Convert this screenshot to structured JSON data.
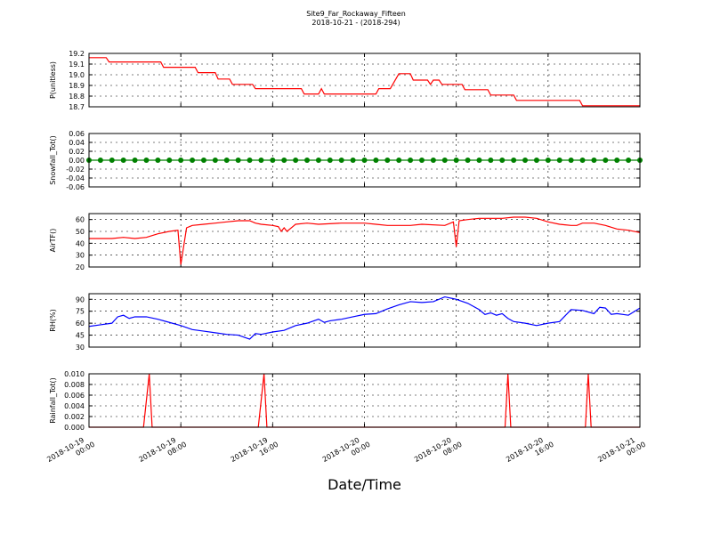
{
  "chart_data": [
    {
      "type": "line",
      "title": "Site9_Far_Rockaway_Fifteen",
      "subtitle": "2018-10-21 - (2018-294)",
      "ylabel": "P(unitless)",
      "color": "#ff0000",
      "grid": true,
      "xlim": [
        "2018-10-19 00:00",
        "2018-10-21 00:00"
      ],
      "xticks": [
        "2018-10-19 00:00",
        "2018-10-19 08:00",
        "2018-10-19 16:00",
        "2018-10-20 00:00",
        "2018-10-20 08:00",
        "2018-10-20 16:00",
        "2018-10-21 00:00"
      ],
      "ylim": [
        18.7,
        19.2
      ],
      "yticks": [
        18.7,
        18.8,
        18.9,
        {
          "value": 19,
          "label": "19.0"
        },
        19.1,
        19.2
      ],
      "x": [
        "2018-10-19 00:00",
        "2018-10-19 01:30",
        "2018-10-19 01:45",
        "2018-10-19 06:15",
        "2018-10-19 06:30",
        "2018-10-19 09:15",
        "2018-10-19 09:30",
        "2018-10-19 11:00",
        "2018-10-19 11:15",
        "2018-10-19 12:15",
        "2018-10-19 12:30",
        "2018-10-19 14:15",
        "2018-10-19 14:30",
        "2018-10-19 18:30",
        "2018-10-19 18:45",
        "2018-10-19 20:00",
        "2018-10-19 20:15",
        "2018-10-19 20:30",
        "2018-10-20 01:00",
        "2018-10-20 01:15",
        "2018-10-20 02:15",
        "2018-10-20 03:00",
        "2018-10-20 04:00",
        "2018-10-20 04:15",
        "2018-10-20 05:30",
        "2018-10-20 05:45",
        "2018-10-20 06:00",
        "2018-10-20 06:30",
        "2018-10-20 06:45",
        "2018-10-20 08:30",
        "2018-10-20 08:45",
        "2018-10-20 10:45",
        "2018-10-20 11:00",
        "2018-10-20 13:00",
        "2018-10-20 13:15",
        "2018-10-20 18:45",
        "2018-10-20 19:00",
        "2018-10-21 00:00"
      ],
      "values": [
        19.16,
        19.16,
        19.12,
        19.12,
        19.07,
        19.07,
        19.02,
        19.02,
        18.96,
        18.96,
        18.91,
        18.91,
        18.87,
        18.87,
        18.82,
        18.82,
        18.87,
        18.82,
        18.82,
        18.87,
        18.87,
        19.01,
        19.01,
        18.95,
        18.95,
        18.91,
        18.95,
        18.95,
        18.91,
        18.91,
        18.86,
        18.86,
        18.81,
        18.81,
        18.76,
        18.76,
        18.71,
        18.71
      ]
    },
    {
      "type": "line",
      "marker": true,
      "ylabel": "Snowfall_Tot()",
      "color": "#008000",
      "grid": true,
      "xlim": [
        "2018-10-19 00:00",
        "2018-10-21 00:00"
      ],
      "xticks": [
        "2018-10-19 00:00",
        "2018-10-19 08:00",
        "2018-10-19 16:00",
        "2018-10-20 00:00",
        "2018-10-20 08:00",
        "2018-10-20 16:00",
        "2018-10-21 00:00"
      ],
      "ylim": [
        -0.06,
        0.06
      ],
      "yticks": [
        -0.06,
        -0.04,
        -0.02,
        {
          "value": 0,
          "label": "0.00"
        },
        0.02,
        0.04,
        0.06
      ],
      "x": [
        "2018-10-19 00:00",
        "2018-10-19 01:00",
        "2018-10-19 02:00",
        "2018-10-19 03:00",
        "2018-10-19 04:00",
        "2018-10-19 05:00",
        "2018-10-19 06:00",
        "2018-10-19 07:00",
        "2018-10-19 08:00",
        "2018-10-19 09:00",
        "2018-10-19 10:00",
        "2018-10-19 11:00",
        "2018-10-19 12:00",
        "2018-10-19 13:00",
        "2018-10-19 14:00",
        "2018-10-19 15:00",
        "2018-10-19 16:00",
        "2018-10-19 17:00",
        "2018-10-19 18:00",
        "2018-10-19 19:00",
        "2018-10-19 20:00",
        "2018-10-19 21:00",
        "2018-10-19 22:00",
        "2018-10-19 23:00",
        "2018-10-20 00:00",
        "2018-10-20 01:00",
        "2018-10-20 02:00",
        "2018-10-20 03:00",
        "2018-10-20 04:00",
        "2018-10-20 05:00",
        "2018-10-20 06:00",
        "2018-10-20 07:00",
        "2018-10-20 08:00",
        "2018-10-20 09:00",
        "2018-10-20 10:00",
        "2018-10-20 11:00",
        "2018-10-20 12:00",
        "2018-10-20 13:00",
        "2018-10-20 14:00",
        "2018-10-20 15:00",
        "2018-10-20 16:00",
        "2018-10-20 17:00",
        "2018-10-20 18:00",
        "2018-10-20 19:00",
        "2018-10-20 20:00",
        "2018-10-20 21:00",
        "2018-10-20 22:00",
        "2018-10-20 23:00",
        "2018-10-21 00:00"
      ],
      "values": [
        0,
        0,
        0,
        0,
        0,
        0,
        0,
        0,
        0,
        0,
        0,
        0,
        0,
        0,
        0,
        0,
        0,
        0,
        0,
        0,
        0,
        0,
        0,
        0,
        0,
        0,
        0,
        0,
        0,
        0,
        0,
        0,
        0,
        0,
        0,
        0,
        0,
        0,
        0,
        0,
        0,
        0,
        0,
        0,
        0,
        0,
        0,
        0,
        0
      ]
    },
    {
      "type": "line",
      "ylabel": "AirTF()",
      "color": "#ff0000",
      "grid": true,
      "xlim": [
        "2018-10-19 00:00",
        "2018-10-21 00:00"
      ],
      "xticks": [
        "2018-10-19 00:00",
        "2018-10-19 08:00",
        "2018-10-19 16:00",
        "2018-10-20 00:00",
        "2018-10-20 08:00",
        "2018-10-20 16:00",
        "2018-10-21 00:00"
      ],
      "ylim": [
        20,
        65
      ],
      "yticks": [
        20,
        30,
        40,
        50,
        60
      ],
      "x": [
        "2018-10-19 00:00",
        "2018-10-19 02:00",
        "2018-10-19 03:00",
        "2018-10-19 04:00",
        "2018-10-19 05:00",
        "2018-10-19 06:00",
        "2018-10-19 07:00",
        "2018-10-19 07:45",
        "2018-10-19 08:00",
        "2018-10-19 08:30",
        "2018-10-19 09:00",
        "2018-10-19 10:00",
        "2018-10-19 11:00",
        "2018-10-19 12:00",
        "2018-10-19 13:00",
        "2018-10-19 14:00",
        "2018-10-19 14:30",
        "2018-10-19 15:00",
        "2018-10-19 16:00",
        "2018-10-19 16:30",
        "2018-10-19 16:45",
        "2018-10-19 17:00",
        "2018-10-19 17:15",
        "2018-10-19 17:45",
        "2018-10-19 18:00",
        "2018-10-19 19:00",
        "2018-10-19 20:00",
        "2018-10-19 22:00",
        "2018-10-20 00:00",
        "2018-10-20 01:00",
        "2018-10-20 02:00",
        "2018-10-20 04:00",
        "2018-10-20 05:00",
        "2018-10-20 07:00",
        "2018-10-20 07:30",
        "2018-10-20 07:45",
        "2018-10-20 08:00",
        "2018-10-20 08:15",
        "2018-10-20 09:00",
        "2018-10-20 10:00",
        "2018-10-20 12:00",
        "2018-10-20 13:00",
        "2018-10-20 14:00",
        "2018-10-20 15:00",
        "2018-10-20 16:00",
        "2018-10-20 17:00",
        "2018-10-20 18:00",
        "2018-10-20 18:30",
        "2018-10-20 19:00",
        "2018-10-20 20:00",
        "2018-10-20 21:00",
        "2018-10-20 22:00",
        "2018-10-20 23:00",
        "2018-10-21 00:00"
      ],
      "values": [
        44,
        44,
        45,
        44,
        45,
        48,
        50,
        51,
        22,
        53,
        55,
        56,
        57,
        58,
        59,
        59,
        57,
        56,
        55,
        54,
        50,
        53,
        50,
        54,
        56,
        57,
        56,
        57,
        57,
        56,
        55,
        55,
        56,
        55,
        57,
        58,
        37,
        59,
        60,
        61,
        61,
        62,
        62,
        61,
        58,
        56,
        55,
        55,
        57,
        57,
        55,
        52,
        51,
        49
      ]
    },
    {
      "type": "line",
      "ylabel": "RH(%)",
      "color": "#0000ff",
      "grid": true,
      "xlim": [
        "2018-10-19 00:00",
        "2018-10-21 00:00"
      ],
      "xticks": [
        "2018-10-19 00:00",
        "2018-10-19 08:00",
        "2018-10-19 16:00",
        "2018-10-20 00:00",
        "2018-10-20 08:00",
        "2018-10-20 16:00",
        "2018-10-21 00:00"
      ],
      "ylim": [
        30,
        97
      ],
      "yticks": [
        30,
        45,
        60,
        75,
        90
      ],
      "x": [
        "2018-10-19 00:00",
        "2018-10-19 01:00",
        "2018-10-19 02:00",
        "2018-10-19 02:30",
        "2018-10-19 03:00",
        "2018-10-19 03:30",
        "2018-10-19 04:00",
        "2018-10-19 05:00",
        "2018-10-19 06:00",
        "2018-10-19 07:00",
        "2018-10-19 08:00",
        "2018-10-19 09:00",
        "2018-10-19 10:00",
        "2018-10-19 11:00",
        "2018-10-19 12:00",
        "2018-10-19 13:00",
        "2018-10-19 14:00",
        "2018-10-19 14:30",
        "2018-10-19 15:00",
        "2018-10-19 16:00",
        "2018-10-19 17:00",
        "2018-10-19 18:00",
        "2018-10-19 19:00",
        "2018-10-19 20:00",
        "2018-10-19 20:30",
        "2018-10-19 21:00",
        "2018-10-19 22:00",
        "2018-10-19 23:00",
        "2018-10-20 00:00",
        "2018-10-20 01:00",
        "2018-10-20 02:00",
        "2018-10-20 03:00",
        "2018-10-20 04:00",
        "2018-10-20 05:00",
        "2018-10-20 06:00",
        "2018-10-20 07:00",
        "2018-10-20 08:00",
        "2018-10-20 09:00",
        "2018-10-20 10:00",
        "2018-10-20 10:30",
        "2018-10-20 11:00",
        "2018-10-20 11:30",
        "2018-10-20 12:00",
        "2018-10-20 12:30",
        "2018-10-20 13:00",
        "2018-10-20 14:00",
        "2018-10-20 15:00",
        "2018-10-20 16:00",
        "2018-10-20 17:00",
        "2018-10-20 18:00",
        "2018-10-20 19:00",
        "2018-10-20 20:00",
        "2018-10-20 20:30",
        "2018-10-20 21:00",
        "2018-10-20 21:30",
        "2018-10-20 22:00",
        "2018-10-20 23:00",
        "2018-10-21 00:00"
      ],
      "values": [
        56,
        58,
        60,
        68,
        70,
        66,
        68,
        68,
        65,
        61,
        57,
        52,
        50,
        48,
        46,
        45,
        40,
        47,
        46,
        49,
        51,
        57,
        60,
        65,
        61,
        63,
        65,
        68,
        71,
        72,
        78,
        83,
        87,
        86,
        87,
        93,
        90,
        85,
        77,
        71,
        73,
        70,
        72,
        66,
        62,
        60,
        57,
        60,
        62,
        77,
        76,
        72,
        80,
        79,
        71,
        72,
        70,
        79
      ]
    },
    {
      "type": "line",
      "ylabel": "Rainfall_Tot()",
      "xlabel": "Date/Time",
      "color": "#ff0000",
      "grid": true,
      "xlim": [
        "2018-10-19 00:00",
        "2018-10-21 00:00"
      ],
      "xticks": [
        "2018-10-19 00:00",
        "2018-10-19 08:00",
        "2018-10-19 16:00",
        "2018-10-20 00:00",
        "2018-10-20 08:00",
        "2018-10-20 16:00",
        "2018-10-21 00:00"
      ],
      "ylim": [
        0,
        0.01
      ],
      "yticks": [
        {
          "value": 0,
          "label": "0.000"
        },
        {
          "value": 0.002,
          "label": "0.002"
        },
        {
          "value": 0.004,
          "label": "0.004"
        },
        {
          "value": 0.006,
          "label": "0.006"
        },
        {
          "value": 0.008,
          "label": "0.008"
        },
        {
          "value": 0.01,
          "label": "0.010"
        }
      ],
      "x": [
        "2018-10-19 00:00",
        "2018-10-19 04:45",
        "2018-10-19 05:15",
        "2018-10-19 05:30",
        "2018-10-19 14:45",
        "2018-10-19 15:15",
        "2018-10-19 15:30",
        "2018-10-20 12:15",
        "2018-10-20 12:30",
        "2018-10-20 12:45",
        "2018-10-20 19:15",
        "2018-10-20 19:30",
        "2018-10-20 19:45",
        "2018-10-21 00:00"
      ],
      "values": [
        0,
        0,
        0.01,
        0,
        0,
        0.01,
        0,
        0,
        0.01,
        0,
        0,
        0.01,
        0,
        0
      ]
    }
  ]
}
